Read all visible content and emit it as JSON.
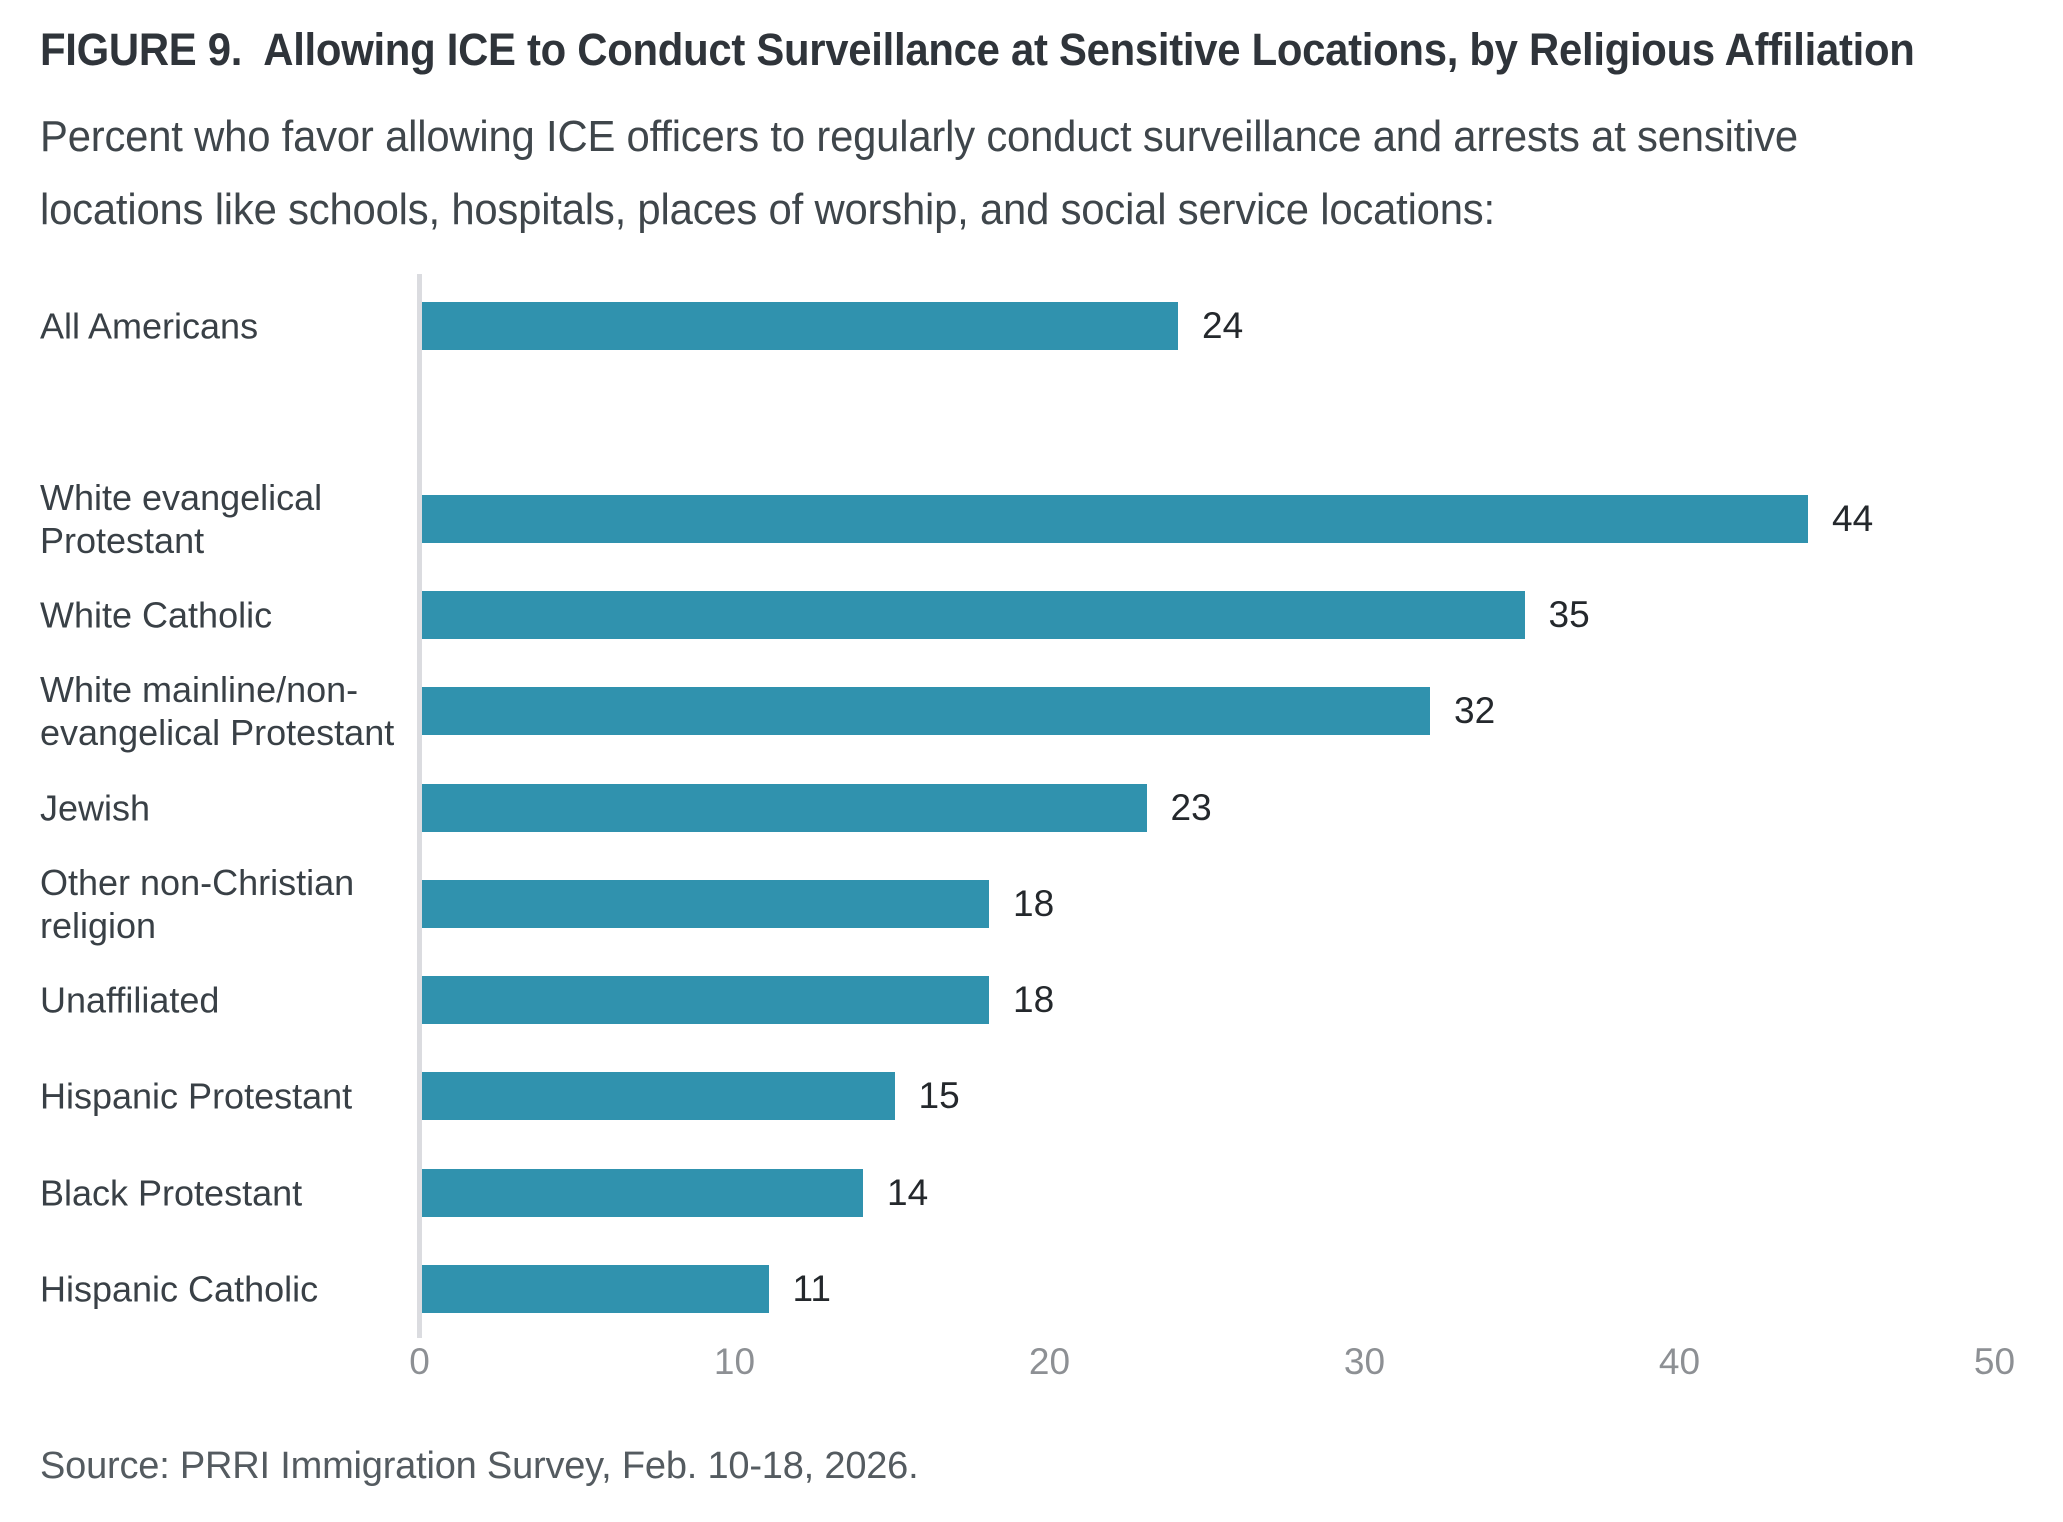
{
  "header": {
    "title": "FIGURE 9.  Allowing ICE to Conduct Surveillance at Sensitive Locations, by Religious Affiliation",
    "subtitle_lines": [
      "Percent who favor allowing ICE officers to regularly conduct surveillance and arrests at sensitive",
      "locations like schools, hospitals, places of worship, and social service locations:"
    ]
  },
  "chart_data": {
    "type": "bar",
    "orientation": "horizontal",
    "categories": [
      "All Americans",
      "White evangelical\nProtestant",
      "White Catholic",
      "White mainline/non-\nevangelical Protestant",
      "Jewish",
      "Other non-Christian\nreligion",
      "Unaffiliated",
      "Hispanic Protestant",
      "Black Protestant",
      "Hispanic Catholic"
    ],
    "values": [
      24,
      44,
      35,
      32,
      23,
      18,
      18,
      15,
      14,
      11
    ],
    "title": "Allowing ICE to Conduct Surveillance at Sensitive Locations, by Religious Affiliation",
    "xlabel": "",
    "ylabel": "",
    "xlim": [
      0,
      50
    ],
    "xticks": [
      0,
      10,
      20,
      30,
      40,
      50
    ],
    "bar_color": "#3092ae",
    "value_labels_shown": true,
    "grid": false,
    "legend": false,
    "gap_after_first_row": true
  },
  "footer": {
    "source": "Source: PRRI Immigration Survey, Feb. 10-18, 2026."
  }
}
